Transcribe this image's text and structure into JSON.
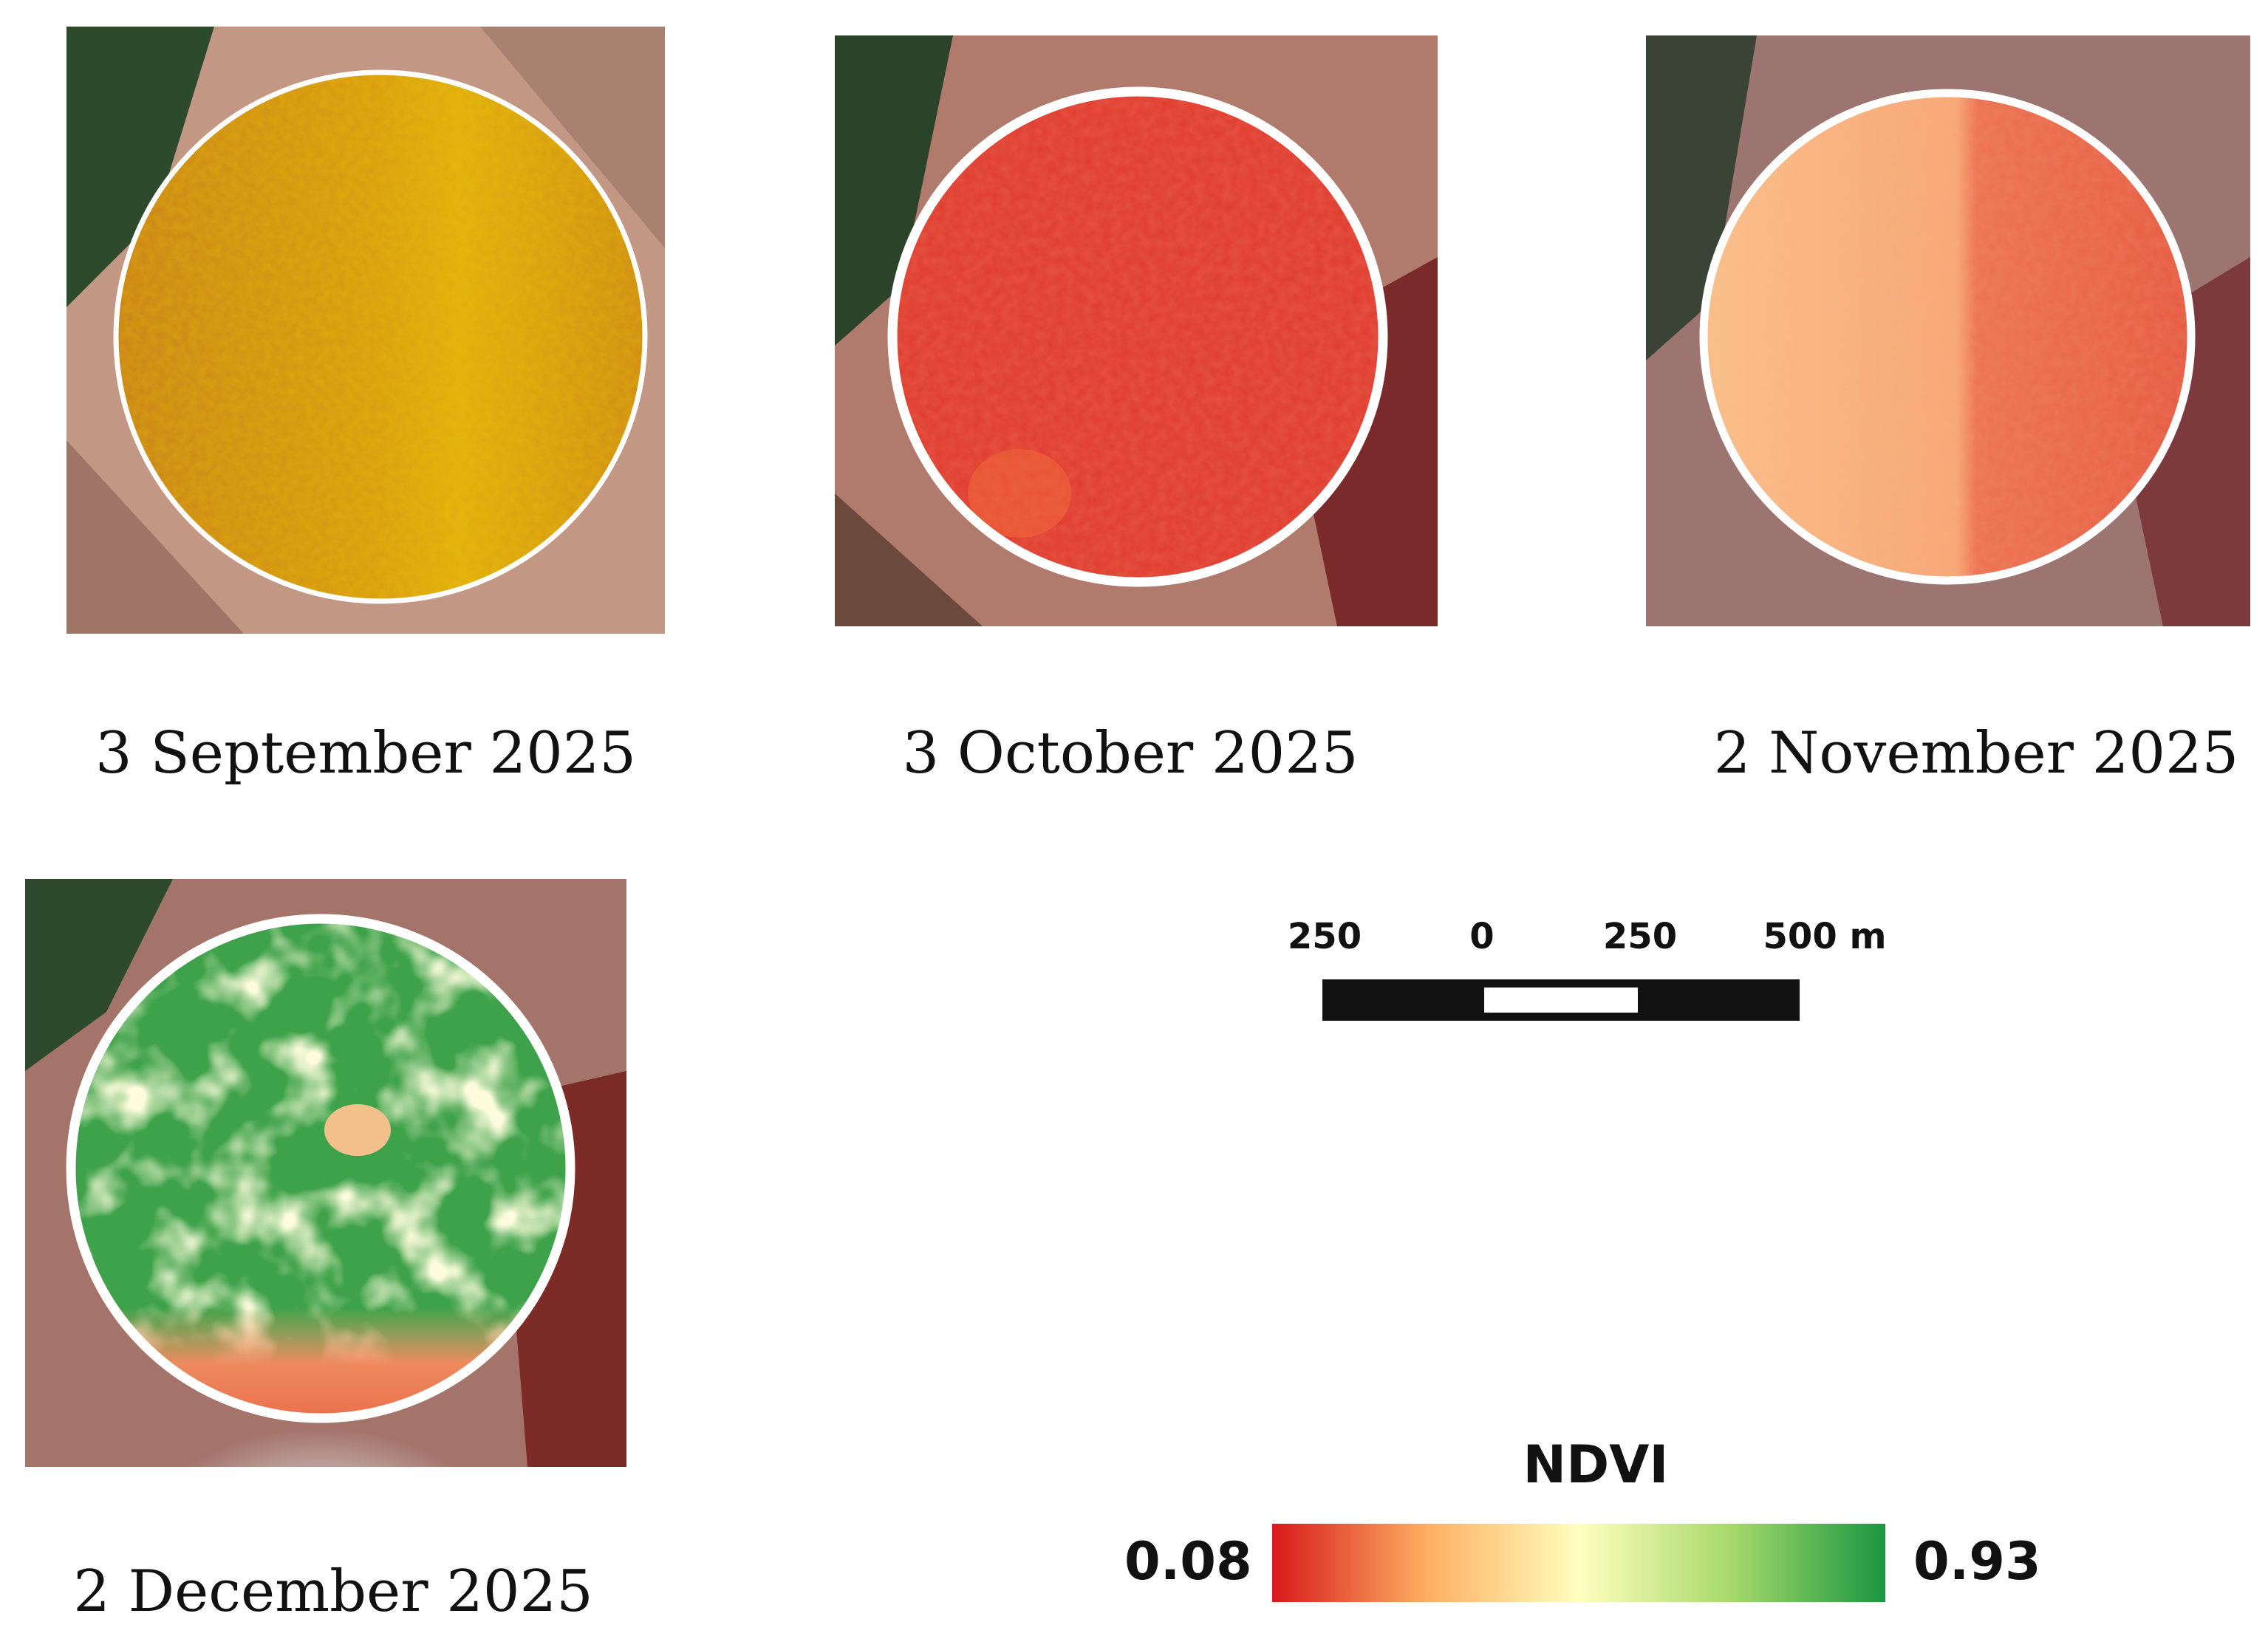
{
  "panels": [
    {
      "date": "3 September 2025"
    },
    {
      "date": "3 October 2025"
    },
    {
      "date": "2 November 2025"
    },
    {
      "date": "2 December 2025"
    }
  ],
  "scale_bar": {
    "labels": [
      "250",
      "0",
      "250",
      "500 m"
    ]
  },
  "legend": {
    "title": "NDVI",
    "min_label": "0.08",
    "max_label": "0.93",
    "gradient_colors": [
      "#d7191c",
      "#fdae61",
      "#ffffbf",
      "#a6d96a",
      "#1a9641"
    ]
  },
  "colors": {
    "field_outline": "#ffffff",
    "background_soil": "#b98873",
    "forest": "#1f3a22"
  }
}
